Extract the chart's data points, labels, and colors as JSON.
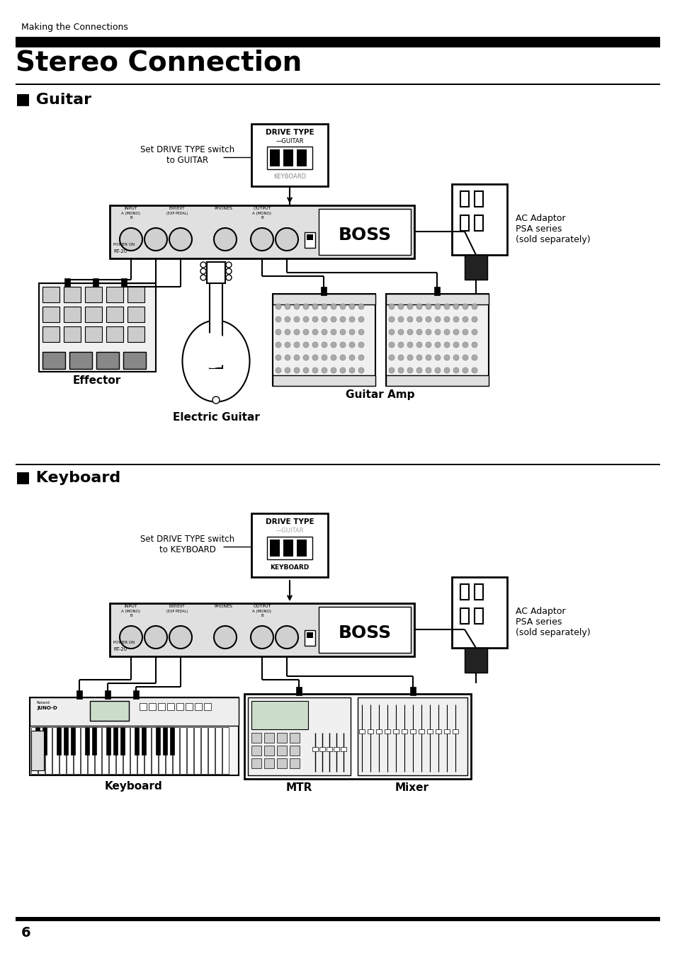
{
  "page_bg": "#ffffff",
  "top_label": "Making the Connections",
  "main_title": "Stereo Connection",
  "section1_title": "■ Guitar",
  "section2_title": "■ Keyboard",
  "page_number": "6",
  "guitar_labels": {
    "drive_type_title": "DRIVE TYPE",
    "drive_guitar": "—GUITAR",
    "drive_keyboard": "KEYBOARD",
    "set_switch_text": "Set DRIVE TYPE switch\nto GUITAR",
    "ac_adaptor": "AC Adaptor\nPSA series\n(sold separately)",
    "effector": "Effector",
    "electric_guitar": "Electric Guitar",
    "guitar_amp": "Guitar Amp"
  },
  "keyboard_labels": {
    "drive_type_title": "DRIVE TYPE",
    "drive_guitar": "—GUITAR",
    "drive_keyboard": "KEYBOARD",
    "set_switch_text": "Set DRIVE TYPE switch\nto KEYBOARD",
    "ac_adaptor": "AC Adaptor\nPSA series\n(sold separately)",
    "keyboard": "Keyboard",
    "mtr": "MTR",
    "mixer": "Mixer"
  }
}
